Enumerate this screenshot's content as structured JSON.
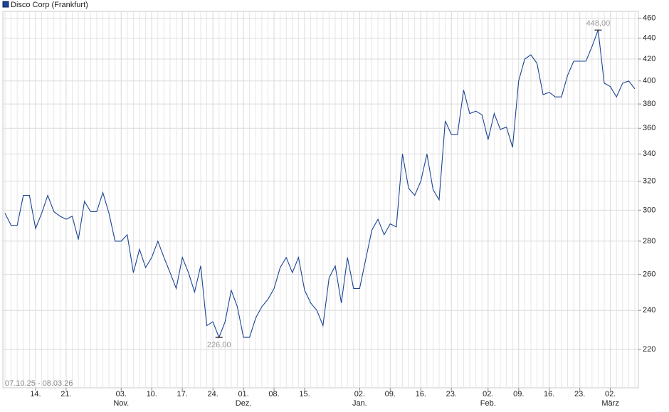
{
  "chart_data": {
    "type": "line",
    "title": "Disco Corp (Frankfurt)",
    "subtitle": "07.10.25 - 08.03.26",
    "series": [
      {
        "name": "Disco Corp (Frankfurt)",
        "color": "#1c4494",
        "values": [
          298,
          290,
          290,
          310,
          310,
          288,
          298,
          310,
          299,
          296,
          294,
          296,
          281,
          306,
          299,
          299,
          312,
          298,
          280,
          280,
          284,
          261,
          275,
          264,
          270,
          280,
          270,
          261,
          252,
          270,
          261,
          250,
          265,
          232,
          234,
          226,
          234,
          251,
          242,
          226,
          226,
          236,
          242,
          246,
          252,
          264,
          270,
          261,
          270,
          251,
          244,
          240,
          232,
          258,
          265,
          244,
          270,
          252,
          252,
          269,
          287,
          294,
          284,
          291,
          289,
          340,
          315,
          310,
          320,
          340,
          314,
          307,
          366,
          355,
          355,
          392,
          372,
          374,
          371,
          351,
          372,
          359,
          361,
          345,
          400,
          420,
          424,
          416,
          388,
          390,
          386,
          386,
          405,
          418,
          418,
          418,
          432,
          448,
          398,
          395,
          386,
          398,
          400,
          393
        ]
      }
    ],
    "annotations": [
      {
        "label": "448,00",
        "value": 448
      },
      {
        "label": "226,00",
        "value": 226
      }
    ],
    "log_scale": true,
    "ylim": [
      202,
      467
    ],
    "yticks": [
      220,
      240,
      260,
      280,
      300,
      320,
      340,
      360,
      380,
      400,
      420,
      440,
      460
    ],
    "xticks": [
      {
        "value": 5,
        "label": "14."
      },
      {
        "value": 10,
        "label": "21."
      },
      {
        "value": 19,
        "label": "03."
      },
      {
        "value": 24,
        "label": "10."
      },
      {
        "value": 29,
        "label": "17."
      },
      {
        "value": 34,
        "label": "24."
      },
      {
        "value": 39,
        "label": "01."
      },
      {
        "value": 44,
        "label": "08."
      },
      {
        "value": 49,
        "label": "15."
      },
      {
        "value": 58,
        "label": "02."
      },
      {
        "value": 63,
        "label": "09."
      },
      {
        "value": 68,
        "label": "16."
      },
      {
        "value": 73,
        "label": "23."
      },
      {
        "value": 79,
        "label": "02."
      },
      {
        "value": 84,
        "label": "09."
      },
      {
        "value": 89,
        "label": "16."
      },
      {
        "value": 94,
        "label": "23."
      },
      {
        "value": 99,
        "label": "02."
      }
    ],
    "month_labels": [
      {
        "value": 19,
        "label": "Nov."
      },
      {
        "value": 39,
        "label": "Dez."
      },
      {
        "value": 58,
        "label": "Jan."
      },
      {
        "value": 79,
        "label": "Feb."
      },
      {
        "value": 99,
        "label": "März"
      }
    ],
    "grid": true
  }
}
